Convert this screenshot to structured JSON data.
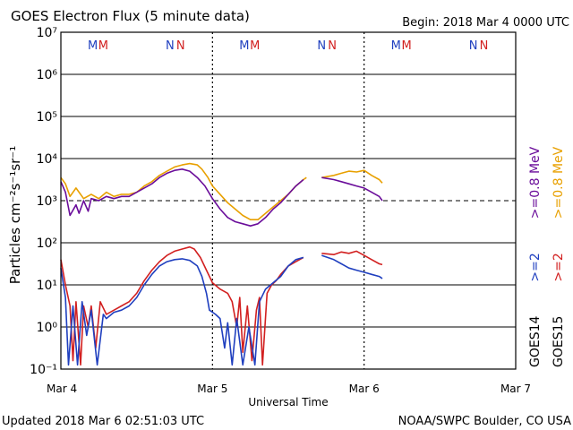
{
  "chart_data": {
    "type": "line",
    "title": "GOES Electron Flux (5 minute data)",
    "begin_label": "Begin: 2018 Mar 4 0000 UTC",
    "xlabel": "Universal Time",
    "ylabel": "Particles cm⁻²s⁻¹sr⁻¹",
    "x_ticks": [
      "Mar 4",
      "Mar 5",
      "Mar 6",
      "Mar 7"
    ],
    "xlim_days": [
      0,
      3
    ],
    "ylim_log10": [
      -1,
      7
    ],
    "y_ticks": [
      {
        "exp": -1,
        "label": "10⁻¹"
      },
      {
        "exp": 0,
        "label": "10⁰"
      },
      {
        "exp": 1,
        "label": "10¹"
      },
      {
        "exp": 2,
        "label": "10²"
      },
      {
        "exp": 3,
        "label": "10³"
      },
      {
        "exp": 4,
        "label": "10⁴"
      },
      {
        "exp": 5,
        "label": "10⁵"
      },
      {
        "exp": 6,
        "label": "10⁶"
      },
      {
        "exp": 7,
        "label": "10⁷"
      }
    ],
    "threshold_log10": 3,
    "gridlines": true,
    "markers": [
      {
        "day": 0.21,
        "label": "M",
        "color": "#1f3fbf"
      },
      {
        "day": 0.28,
        "label": "M",
        "color": "#d22020"
      },
      {
        "day": 0.72,
        "label": "N",
        "color": "#1f3fbf"
      },
      {
        "day": 0.79,
        "label": "N",
        "color": "#d22020"
      },
      {
        "day": 1.21,
        "label": "M",
        "color": "#1f3fbf"
      },
      {
        "day": 1.28,
        "label": "M",
        "color": "#d22020"
      },
      {
        "day": 1.72,
        "label": "N",
        "color": "#1f3fbf"
      },
      {
        "day": 1.79,
        "label": "N",
        "color": "#d22020"
      },
      {
        "day": 2.21,
        "label": "M",
        "color": "#1f3fbf"
      },
      {
        "day": 2.28,
        "label": "M",
        "color": "#d22020"
      },
      {
        "day": 2.72,
        "label": "N",
        "color": "#1f3fbf"
      },
      {
        "day": 2.79,
        "label": "N",
        "color": "#d22020"
      }
    ],
    "right_legend": [
      {
        "text": "GOES14",
        "color": "#000000"
      },
      {
        "text": ">=2",
        "color": "#1f3fbf"
      },
      {
        "text": ">=0.8  MeV",
        "color": "#6a0d9a"
      },
      {
        "text": "GOES15",
        "color": "#000000"
      },
      {
        "text": ">=2",
        "color": "#d22020"
      },
      {
        "text": ">=0.8  MeV",
        "color": "#e8a000"
      }
    ],
    "series": [
      {
        "name": "GOES15 >=0.8 MeV",
        "color": "#e8a000",
        "points": [
          [
            0.0,
            3.55
          ],
          [
            0.03,
            3.4
          ],
          [
            0.06,
            3.1
          ],
          [
            0.1,
            3.3
          ],
          [
            0.15,
            3.05
          ],
          [
            0.2,
            3.15
          ],
          [
            0.25,
            3.05
          ],
          [
            0.3,
            3.2
          ],
          [
            0.35,
            3.1
          ],
          [
            0.4,
            3.15
          ],
          [
            0.45,
            3.15
          ],
          [
            0.5,
            3.2
          ],
          [
            0.55,
            3.35
          ],
          [
            0.6,
            3.45
          ],
          [
            0.65,
            3.6
          ],
          [
            0.7,
            3.7
          ],
          [
            0.75,
            3.8
          ],
          [
            0.8,
            3.85
          ],
          [
            0.85,
            3.88
          ],
          [
            0.9,
            3.85
          ],
          [
            0.93,
            3.75
          ],
          [
            0.97,
            3.55
          ],
          [
            1.0,
            3.35
          ],
          [
            1.05,
            3.15
          ],
          [
            1.1,
            2.95
          ],
          [
            1.15,
            2.8
          ],
          [
            1.2,
            2.65
          ],
          [
            1.25,
            2.55
          ],
          [
            1.3,
            2.55
          ],
          [
            1.35,
            2.7
          ],
          [
            1.4,
            2.85
          ],
          [
            1.45,
            3.0
          ],
          [
            1.5,
            3.15
          ],
          [
            1.55,
            3.35
          ],
          [
            1.6,
            3.5
          ],
          [
            1.62,
            3.55
          ]
        ],
        "points2": [
          [
            1.72,
            3.55
          ],
          [
            1.8,
            3.6
          ],
          [
            1.85,
            3.65
          ],
          [
            1.9,
            3.7
          ],
          [
            1.95,
            3.68
          ],
          [
            2.0,
            3.72
          ],
          [
            2.05,
            3.6
          ],
          [
            2.1,
            3.5
          ],
          [
            2.12,
            3.42
          ]
        ]
      },
      {
        "name": "GOES14 >=0.8 MeV",
        "color": "#6a0d9a",
        "points": [
          [
            0.0,
            3.45
          ],
          [
            0.03,
            3.2
          ],
          [
            0.06,
            2.65
          ],
          [
            0.1,
            2.9
          ],
          [
            0.12,
            2.7
          ],
          [
            0.15,
            3.0
          ],
          [
            0.18,
            2.75
          ],
          [
            0.2,
            3.05
          ],
          [
            0.25,
            3.0
          ],
          [
            0.3,
            3.1
          ],
          [
            0.35,
            3.05
          ],
          [
            0.4,
            3.1
          ],
          [
            0.45,
            3.1
          ],
          [
            0.5,
            3.2
          ],
          [
            0.55,
            3.3
          ],
          [
            0.6,
            3.4
          ],
          [
            0.65,
            3.55
          ],
          [
            0.7,
            3.65
          ],
          [
            0.75,
            3.72
          ],
          [
            0.8,
            3.75
          ],
          [
            0.85,
            3.7
          ],
          [
            0.9,
            3.55
          ],
          [
            0.95,
            3.35
          ],
          [
            1.0,
            3.05
          ],
          [
            1.05,
            2.8
          ],
          [
            1.1,
            2.6
          ],
          [
            1.15,
            2.5
          ],
          [
            1.2,
            2.45
          ],
          [
            1.25,
            2.4
          ],
          [
            1.3,
            2.45
          ],
          [
            1.35,
            2.6
          ],
          [
            1.4,
            2.8
          ],
          [
            1.45,
            2.95
          ],
          [
            1.5,
            3.15
          ],
          [
            1.55,
            3.35
          ],
          [
            1.6,
            3.5
          ]
        ],
        "points2": [
          [
            1.72,
            3.55
          ],
          [
            1.8,
            3.5
          ],
          [
            1.85,
            3.45
          ],
          [
            1.9,
            3.4
          ],
          [
            1.95,
            3.35
          ],
          [
            2.0,
            3.3
          ],
          [
            2.05,
            3.2
          ],
          [
            2.1,
            3.1
          ],
          [
            2.12,
            3.0
          ]
        ]
      },
      {
        "name": "GOES15 >=2 MeV",
        "color": "#d22020",
        "points": [
          [
            0.0,
            1.6
          ],
          [
            0.03,
            1.0
          ],
          [
            0.06,
            0.5
          ],
          [
            0.08,
            -0.8
          ],
          [
            0.1,
            0.6
          ],
          [
            0.13,
            -0.9
          ],
          [
            0.15,
            0.5
          ],
          [
            0.18,
            0.0
          ],
          [
            0.2,
            0.5
          ],
          [
            0.23,
            -0.5
          ],
          [
            0.26,
            0.6
          ],
          [
            0.3,
            0.3
          ],
          [
            0.35,
            0.4
          ],
          [
            0.4,
            0.5
          ],
          [
            0.45,
            0.6
          ],
          [
            0.5,
            0.8
          ],
          [
            0.55,
            1.1
          ],
          [
            0.6,
            1.35
          ],
          [
            0.65,
            1.55
          ],
          [
            0.7,
            1.7
          ],
          [
            0.75,
            1.8
          ],
          [
            0.8,
            1.85
          ],
          [
            0.85,
            1.9
          ],
          [
            0.88,
            1.85
          ],
          [
            0.92,
            1.65
          ],
          [
            0.96,
            1.35
          ],
          [
            1.0,
            1.05
          ],
          [
            1.05,
            0.9
          ],
          [
            1.1,
            0.8
          ],
          [
            1.13,
            0.6
          ],
          [
            1.16,
            0.0
          ],
          [
            1.18,
            0.7
          ],
          [
            1.2,
            -0.6
          ],
          [
            1.23,
            0.5
          ],
          [
            1.26,
            -0.8
          ],
          [
            1.29,
            0.4
          ],
          [
            1.31,
            0.7
          ],
          [
            1.33,
            -0.9
          ],
          [
            1.36,
            0.8
          ],
          [
            1.39,
            1.0
          ],
          [
            1.42,
            1.1
          ],
          [
            1.45,
            1.25
          ],
          [
            1.5,
            1.45
          ],
          [
            1.55,
            1.55
          ],
          [
            1.6,
            1.65
          ]
        ],
        "points2": [
          [
            1.72,
            1.75
          ],
          [
            1.8,
            1.72
          ],
          [
            1.85,
            1.78
          ],
          [
            1.9,
            1.75
          ],
          [
            1.95,
            1.8
          ],
          [
            2.0,
            1.7
          ],
          [
            2.05,
            1.6
          ],
          [
            2.1,
            1.5
          ],
          [
            2.12,
            1.48
          ]
        ]
      },
      {
        "name": "GOES14 >=2 MeV",
        "color": "#1f3fbf",
        "points": [
          [
            0.0,
            1.4
          ],
          [
            0.03,
            0.7
          ],
          [
            0.05,
            -0.9
          ],
          [
            0.08,
            0.5
          ],
          [
            0.11,
            -0.9
          ],
          [
            0.14,
            0.6
          ],
          [
            0.17,
            -0.2
          ],
          [
            0.2,
            0.4
          ],
          [
            0.24,
            -0.9
          ],
          [
            0.28,
            0.3
          ],
          [
            0.3,
            0.2
          ],
          [
            0.35,
            0.35
          ],
          [
            0.4,
            0.4
          ],
          [
            0.45,
            0.5
          ],
          [
            0.5,
            0.7
          ],
          [
            0.55,
            1.0
          ],
          [
            0.6,
            1.25
          ],
          [
            0.65,
            1.45
          ],
          [
            0.7,
            1.55
          ],
          [
            0.75,
            1.6
          ],
          [
            0.8,
            1.62
          ],
          [
            0.85,
            1.58
          ],
          [
            0.9,
            1.45
          ],
          [
            0.93,
            1.2
          ],
          [
            0.96,
            0.8
          ],
          [
            0.98,
            0.4
          ],
          [
            1.02,
            0.3
          ],
          [
            1.05,
            0.2
          ],
          [
            1.08,
            -0.5
          ],
          [
            1.1,
            0.1
          ],
          [
            1.13,
            -0.9
          ],
          [
            1.16,
            0.2
          ],
          [
            1.2,
            -0.9
          ],
          [
            1.24,
            0.0
          ],
          [
            1.28,
            -0.9
          ],
          [
            1.31,
            0.6
          ],
          [
            1.35,
            0.9
          ],
          [
            1.4,
            1.05
          ],
          [
            1.45,
            1.2
          ],
          [
            1.5,
            1.45
          ],
          [
            1.55,
            1.6
          ],
          [
            1.6,
            1.65
          ]
        ],
        "points2": [
          [
            1.72,
            1.7
          ],
          [
            1.8,
            1.6
          ],
          [
            1.85,
            1.5
          ],
          [
            1.9,
            1.4
          ],
          [
            1.95,
            1.35
          ],
          [
            2.0,
            1.3
          ],
          [
            2.05,
            1.25
          ],
          [
            2.1,
            1.2
          ],
          [
            2.12,
            1.15
          ]
        ]
      }
    ]
  },
  "footer": {
    "updated": "Updated 2018 Mar  6 02:51:03 UTC",
    "credit": "NOAA/SWPC Boulder, CO USA"
  }
}
